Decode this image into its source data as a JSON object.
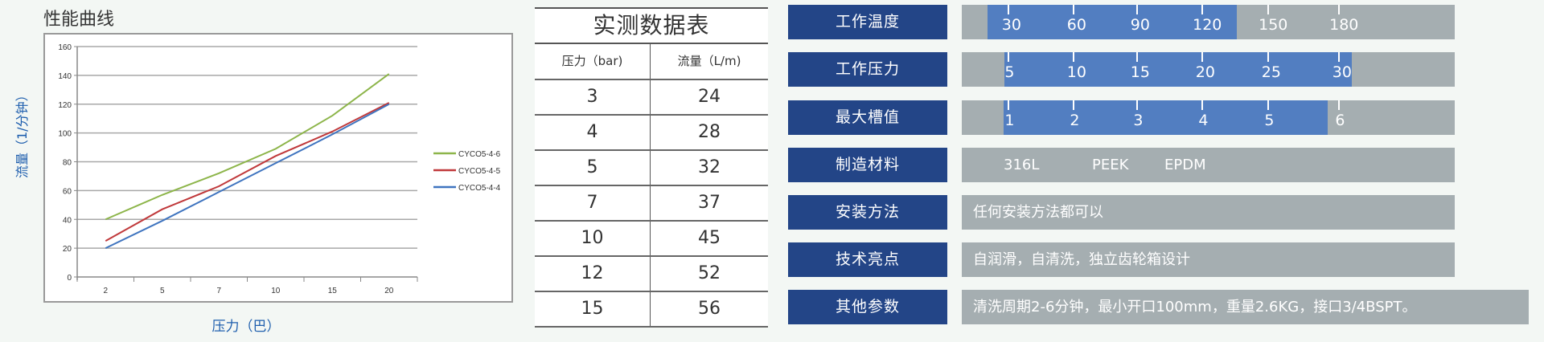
{
  "chart_data": {
    "type": "line",
    "title": "性能曲线",
    "xlabel": "压力（巴）",
    "ylabel": "流量（1/分钟）",
    "categories": [
      "2",
      "5",
      "7",
      "10",
      "15",
      "20"
    ],
    "ylim": [
      0,
      160
    ],
    "yticks": [
      0,
      20,
      40,
      60,
      80,
      100,
      120,
      140,
      160
    ],
    "grid": true,
    "legend_position": "right",
    "series": [
      {
        "name": "CYCO5-4-6",
        "color": "#8db54a",
        "values": [
          40,
          57,
          72,
          89,
          112,
          141
        ]
      },
      {
        "name": "CYCO5-4-5",
        "color": "#c0393b",
        "values": [
          25,
          47,
          63,
          84,
          101,
          121
        ]
      },
      {
        "name": "CYCO5-4-4",
        "color": "#3f74bf",
        "values": [
          20,
          39,
          59,
          79,
          99,
          120
        ]
      }
    ]
  },
  "table": {
    "title": "实测数据表",
    "headers": [
      "压力（bar)",
      "流量（L/m)"
    ],
    "rows": [
      [
        "3",
        "24"
      ],
      [
        "4",
        "28"
      ],
      [
        "5",
        "32"
      ],
      [
        "7",
        "37"
      ],
      [
        "10",
        "45"
      ],
      [
        "12",
        "52"
      ],
      [
        "15",
        "56"
      ]
    ]
  },
  "specs": {
    "temperature": {
      "label": "工作温度",
      "ticks": [
        "30",
        "60",
        "90",
        "120",
        "150",
        "180"
      ],
      "range": [
        25,
        120
      ]
    },
    "pressure": {
      "label": "工作压力",
      "ticks": [
        "5",
        "10",
        "15",
        "20",
        "25",
        "30"
      ],
      "range": [
        5,
        30
      ]
    },
    "max_slot": {
      "label": "最大槽值",
      "ticks": [
        "1",
        "2",
        "3",
        "4",
        "5",
        "6"
      ],
      "range": [
        1,
        5.5
      ]
    },
    "materials": {
      "label": "制造材料",
      "values": [
        "316L",
        "PEEK",
        "EPDM"
      ]
    },
    "install": {
      "label": "安装方法",
      "value": "任何安装方法都可以"
    },
    "highlights": {
      "label": "技术亮点",
      "value": "自润滑，自清洗，独立齿轮箱设计"
    },
    "other": {
      "label": "其他参数",
      "value": "清洗周期2-6分钟，最小开口100mm，重量2.6KG，接口3/4BSPT。"
    }
  },
  "colors": {
    "label_bg": "#234587",
    "bar_bg": "#a5aeb1",
    "fill": "#527ec1"
  }
}
